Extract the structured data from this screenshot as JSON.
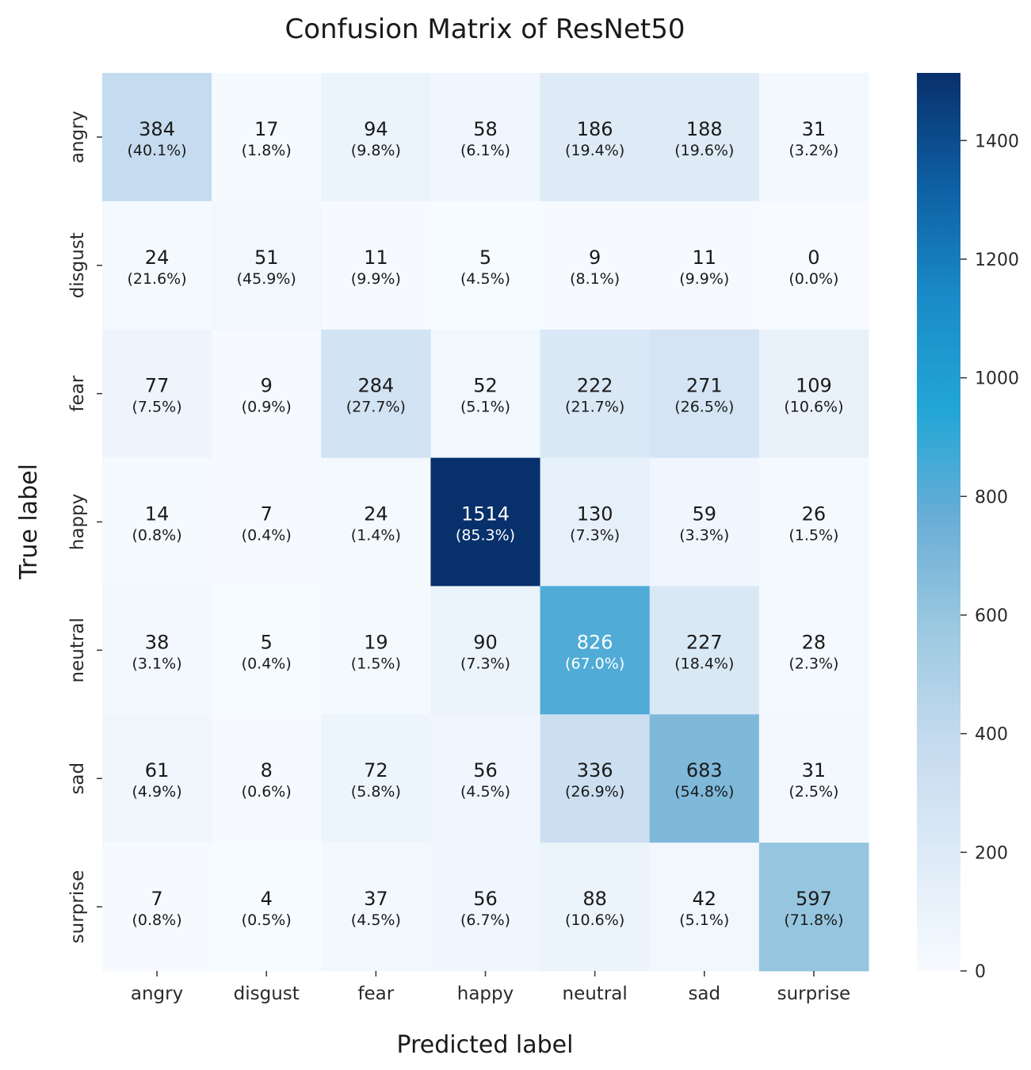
{
  "chart_data": {
    "type": "heatmap",
    "title": "Confusion Matrix of ResNet50",
    "xlabel": "Predicted label",
    "ylabel": "True label",
    "x_categories": [
      "angry",
      "disgust",
      "fear",
      "happy",
      "neutral",
      "sad",
      "surprise"
    ],
    "y_categories": [
      "angry",
      "disgust",
      "fear",
      "happy",
      "neutral",
      "sad",
      "surprise"
    ],
    "values": [
      [
        384,
        17,
        94,
        58,
        186,
        188,
        31
      ],
      [
        24,
        51,
        11,
        5,
        9,
        11,
        0
      ],
      [
        77,
        9,
        284,
        52,
        222,
        271,
        109
      ],
      [
        14,
        7,
        24,
        1514,
        130,
        59,
        26
      ],
      [
        38,
        5,
        19,
        90,
        826,
        227,
        28
      ],
      [
        61,
        8,
        72,
        56,
        336,
        683,
        31
      ],
      [
        7,
        4,
        37,
        56,
        88,
        42,
        597
      ]
    ],
    "percentages": [
      [
        "(40.1%)",
        "(1.8%)",
        "(9.8%)",
        "(6.1%)",
        "(19.4%)",
        "(19.6%)",
        "(3.2%)"
      ],
      [
        "(21.6%)",
        "(45.9%)",
        "(9.9%)",
        "(4.5%)",
        "(8.1%)",
        "(9.9%)",
        "(0.0%)"
      ],
      [
        "(7.5%)",
        "(0.9%)",
        "(27.7%)",
        "(5.1%)",
        "(21.7%)",
        "(26.5%)",
        "(10.6%)"
      ],
      [
        "(0.8%)",
        "(0.4%)",
        "(1.4%)",
        "(85.3%)",
        "(7.3%)",
        "(3.3%)",
        "(1.5%)"
      ],
      [
        "(3.1%)",
        "(0.4%)",
        "(1.5%)",
        "(7.3%)",
        "(67.0%)",
        "(18.4%)",
        "(2.3%)"
      ],
      [
        "(4.9%)",
        "(0.6%)",
        "(5.8%)",
        "(4.5%)",
        "(26.9%)",
        "(54.8%)",
        "(2.5%)"
      ],
      [
        "(0.8%)",
        "(0.5%)",
        "(4.5%)",
        "(6.7%)",
        "(10.6%)",
        "(5.1%)",
        "(71.8%)"
      ]
    ],
    "colorbar": {
      "ticks": [
        0,
        200,
        400,
        600,
        800,
        1000,
        1200,
        1400
      ],
      "range": [
        0,
        1514
      ],
      "colormap": "Blues"
    }
  }
}
